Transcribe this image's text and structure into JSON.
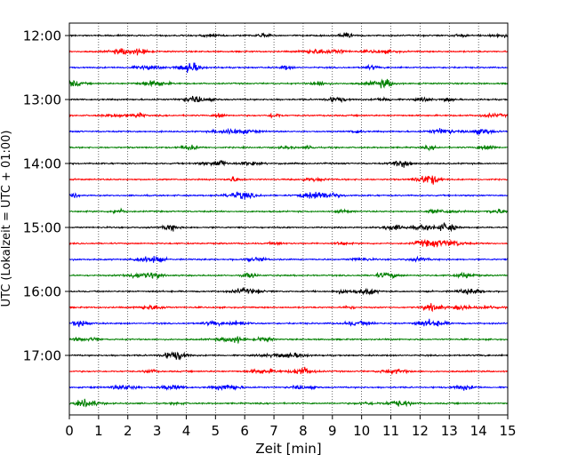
{
  "chart_data": {
    "type": "line",
    "title": "",
    "xlabel": "Zeit  [min]",
    "ylabel": "UTC (Lokalzeit = UTC + 01:00)",
    "xlim": [
      0,
      15
    ],
    "x_ticks": [
      0,
      1,
      2,
      3,
      4,
      5,
      6,
      7,
      8,
      9,
      10,
      11,
      12,
      13,
      14,
      15
    ],
    "y_ticks": [
      "12:00",
      "13:00",
      "14:00",
      "15:00",
      "16:00",
      "17:00"
    ],
    "grid": "vertical-dotted",
    "legend": "none",
    "trace_interval_minutes": 15,
    "trace_colors": [
      "#000000",
      "#ff0000",
      "#0000ff",
      "#008000"
    ],
    "series": [
      {
        "start": "12:00",
        "color": "#000000"
      },
      {
        "start": "12:15",
        "color": "#ff0000"
      },
      {
        "start": "12:30",
        "color": "#0000ff"
      },
      {
        "start": "12:45",
        "color": "#008000"
      },
      {
        "start": "13:00",
        "color": "#000000"
      },
      {
        "start": "13:15",
        "color": "#ff0000"
      },
      {
        "start": "13:30",
        "color": "#0000ff"
      },
      {
        "start": "13:45",
        "color": "#008000"
      },
      {
        "start": "14:00",
        "color": "#000000"
      },
      {
        "start": "14:15",
        "color": "#ff0000"
      },
      {
        "start": "14:30",
        "color": "#0000ff"
      },
      {
        "start": "14:45",
        "color": "#008000"
      },
      {
        "start": "15:00",
        "color": "#000000"
      },
      {
        "start": "15:15",
        "color": "#ff0000"
      },
      {
        "start": "15:30",
        "color": "#0000ff"
      },
      {
        "start": "15:45",
        "color": "#008000"
      },
      {
        "start": "16:00",
        "color": "#000000"
      },
      {
        "start": "16:15",
        "color": "#ff0000"
      },
      {
        "start": "16:30",
        "color": "#0000ff"
      },
      {
        "start": "16:45",
        "color": "#008000"
      },
      {
        "start": "17:00",
        "color": "#000000"
      },
      {
        "start": "17:15",
        "color": "#ff0000"
      },
      {
        "start": "17:30",
        "color": "#0000ff"
      },
      {
        "start": "17:45",
        "color": "#008000"
      }
    ]
  }
}
